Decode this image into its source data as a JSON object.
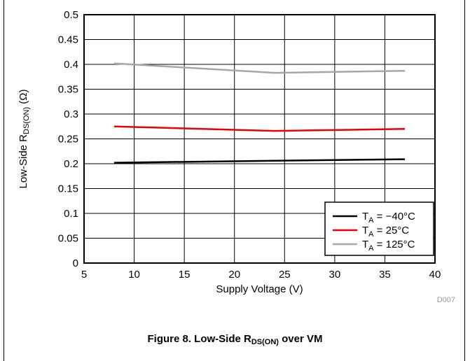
{
  "chart_data": {
    "type": "line",
    "title": "",
    "xlabel": "Supply Voltage (V)",
    "ylabel": {
      "prefix": "Low-Side R",
      "subscript": "DS(ON)",
      "suffix": " (Ω)"
    },
    "xlim": [
      5,
      40
    ],
    "ylim": [
      0,
      0.5
    ],
    "x_ticks": [
      5,
      10,
      15,
      20,
      25,
      30,
      35,
      40
    ],
    "y_ticks": [
      0,
      0.05,
      0.1,
      0.15,
      0.2,
      0.25,
      0.3,
      0.35,
      0.4,
      0.45,
      0.5
    ],
    "grid": true,
    "legend_position": "bottom-right",
    "series": [
      {
        "name": "T_A = −40°C",
        "label_main": "T",
        "label_sub": "A",
        "label_rest": " = −40°C",
        "color": "#000000",
        "x": [
          8,
          24,
          37
        ],
        "values": [
          0.202,
          0.206,
          0.209
        ]
      },
      {
        "name": "T_A = 25°C",
        "label_main": "T",
        "label_sub": "A",
        "label_rest": " = 25°C",
        "color": "#e8000b",
        "x": [
          8,
          24,
          37
        ],
        "values": [
          0.275,
          0.266,
          0.27
        ]
      },
      {
        "name": "T_A = 125°C",
        "label_main": "T",
        "label_sub": "A",
        "label_rest": " = 125°C",
        "color": "#a6a6a6",
        "x": [
          8,
          24,
          37
        ],
        "values": [
          0.402,
          0.383,
          0.387
        ]
      }
    ],
    "annotation": "D007"
  },
  "caption": {
    "prefix": "Figure 8. Low-Side R",
    "subscript": "DS(ON)",
    "suffix": " over VM"
  }
}
